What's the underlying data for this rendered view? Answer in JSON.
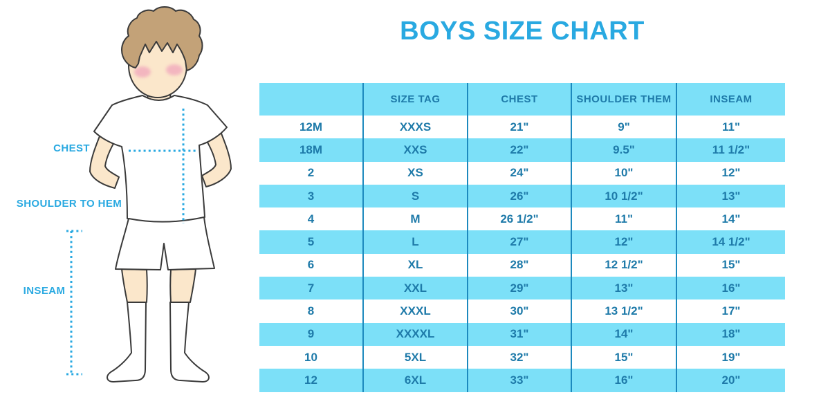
{
  "page_title": "BOYS SIZE CHART",
  "colors": {
    "title_blue": "#29A9E1",
    "table_text_blue": "#1E7AA9",
    "row_highlight_blue": "#7CE0F8",
    "column_divider_blue": "#1C89BE",
    "dotted_line_blue": "#29A9E1",
    "skin_tone": "#FBE7CB",
    "hair_brown": "#C3A278",
    "cheek_pink": "#F2AEBE"
  },
  "figure_labels": {
    "chest": "CHEST",
    "shoulder_to_hem": "SHOULDER TO HEM",
    "inseam": "INSEAM"
  },
  "size_table": {
    "columns": [
      "",
      "SIZE TAG",
      "CHEST",
      "SHOULDER THEM",
      "INSEAM"
    ],
    "rows": [
      [
        "12M",
        "XXXS",
        "21\"",
        "9\"",
        "11\""
      ],
      [
        "18M",
        "XXS",
        "22\"",
        "9.5\"",
        "11 1/2\""
      ],
      [
        "2",
        "XS",
        "24\"",
        "10\"",
        "12\""
      ],
      [
        "3",
        "S",
        "26\"",
        "10 1/2\"",
        "13\""
      ],
      [
        "4",
        "M",
        "26 1/2\"",
        "11\"",
        "14\""
      ],
      [
        "5",
        "L",
        "27\"",
        "12\"",
        "14 1/2\""
      ],
      [
        "6",
        "XL",
        "28\"",
        "12 1/2\"",
        "15\""
      ],
      [
        "7",
        "XXL",
        "29\"",
        "13\"",
        "16\""
      ],
      [
        "8",
        "XXXL",
        "30\"",
        "13 1/2\"",
        "17\""
      ],
      [
        "9",
        "XXXXL",
        "31\"",
        "14\"",
        "18\""
      ],
      [
        "10",
        "5XL",
        "32\"",
        "15\"",
        "19\""
      ],
      [
        "12",
        "6XL",
        "33\"",
        "16\"",
        "20\""
      ]
    ]
  }
}
